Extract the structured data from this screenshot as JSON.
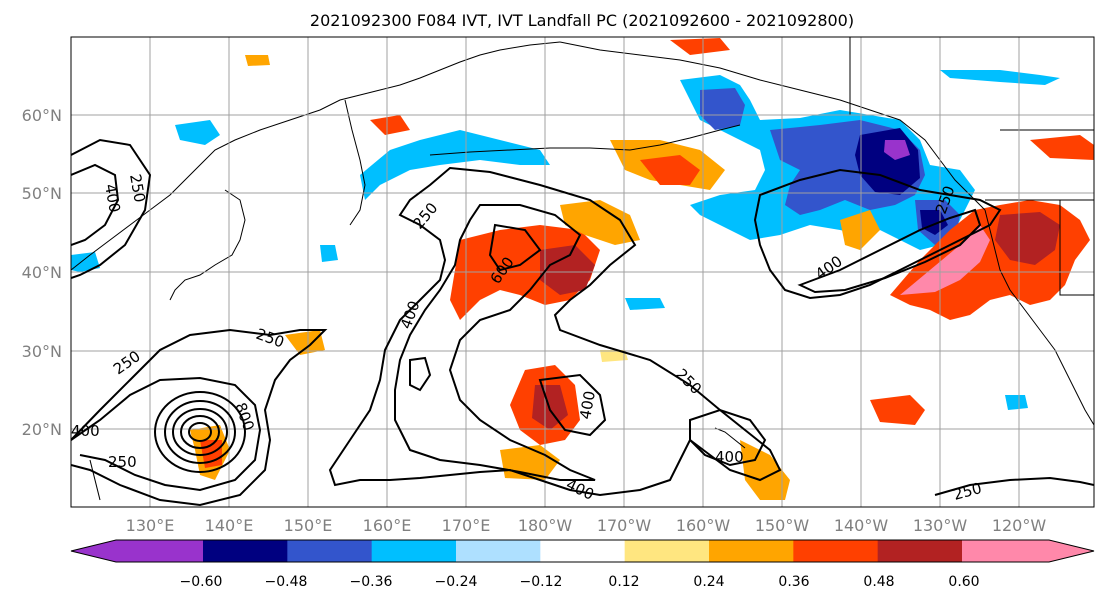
{
  "title": "2021092300 F084 IVT, IVT Landfall PC (2021092600 - 2021092800)",
  "lat_labels": [
    "60°N",
    "50°N",
    "40°N",
    "30°N",
    "20°N"
  ],
  "lon_labels": [
    "130°E",
    "140°E",
    "150°E",
    "160°E",
    "170°E",
    "180°W",
    "170°W",
    "160°W",
    "150°W",
    "140°W",
    "130°W",
    "120°W"
  ],
  "colorbar": {
    "tick_labels": [
      "−0.60",
      "−0.48",
      "−0.36",
      "−0.24",
      "−0.12",
      "0.12",
      "0.24",
      "0.36",
      "0.48",
      "0.60"
    ],
    "colors": [
      "#9933cc",
      "#000080",
      "#3355cc",
      "#00bfff",
      "#aee0ff",
      "#ffffff",
      "#ffe680",
      "#ffa500",
      "#ff4000",
      "#b22222",
      "#ff88aa"
    ]
  },
  "contour_labels": [
    "250",
    "400",
    "250",
    "400",
    "800",
    "250",
    "250",
    "250",
    "400",
    "600",
    "250",
    "400",
    "400",
    "400",
    "250",
    "400",
    "250"
  ]
}
